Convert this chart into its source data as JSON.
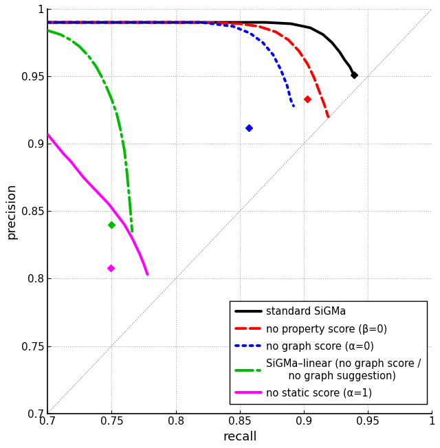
{
  "xlabel": "recall",
  "ylabel": "precision",
  "xlim": [
    0.7,
    1.0
  ],
  "ylim": [
    0.7,
    1.0
  ],
  "xticks": [
    0.7,
    0.75,
    0.8,
    0.85,
    0.9,
    0.95,
    1.0
  ],
  "yticks": [
    0.7,
    0.75,
    0.8,
    0.85,
    0.9,
    0.95,
    1.0
  ],
  "xticklabels": [
    "0.7",
    "0.75",
    "0.8",
    "0.85",
    "0.9",
    "0.95",
    "1"
  ],
  "yticklabels": [
    "0.7",
    "0.75",
    "0.8",
    "0.85",
    "0.9",
    "0.95",
    "1"
  ],
  "diagonal": {
    "x": [
      0.7,
      1.0
    ],
    "y": [
      0.7,
      1.0
    ],
    "color": "#888888",
    "lw": 0.9
  },
  "curves": [
    {
      "name": "standard SiGMa",
      "color": "#000000",
      "linestyle": "solid",
      "lw": 2.8,
      "recall": [
        0.7,
        0.73,
        0.76,
        0.79,
        0.82,
        0.85,
        0.87,
        0.89,
        0.905,
        0.915,
        0.922,
        0.928,
        0.932,
        0.936,
        0.939
      ],
      "precision": [
        0.99,
        0.99,
        0.99,
        0.99,
        0.99,
        0.99,
        0.99,
        0.989,
        0.986,
        0.981,
        0.975,
        0.968,
        0.962,
        0.957,
        0.951
      ],
      "marker_x": [
        0.939
      ],
      "marker_y": [
        0.951
      ],
      "marker": "D",
      "markersize": 5.5
    },
    {
      "name": "no property score (β=0)",
      "color": "#ff0000",
      "linestyle": "dashed",
      "lw": 2.8,
      "recall": [
        0.7,
        0.73,
        0.76,
        0.79,
        0.82,
        0.85,
        0.865,
        0.878,
        0.888,
        0.896,
        0.903,
        0.908,
        0.912,
        0.916,
        0.919
      ],
      "precision": [
        0.99,
        0.99,
        0.99,
        0.99,
        0.99,
        0.989,
        0.987,
        0.983,
        0.977,
        0.969,
        0.959,
        0.949,
        0.939,
        0.929,
        0.92
      ],
      "marker_x": [
        0.903
      ],
      "marker_y": [
        0.933
      ],
      "marker": "D",
      "markersize": 5.5
    },
    {
      "name": "no graph score (α=0)",
      "color": "#0000ff",
      "linestyle": "dotted",
      "lw": 2.8,
      "recall": [
        0.7,
        0.73,
        0.76,
        0.79,
        0.82,
        0.845,
        0.858,
        0.868,
        0.876,
        0.882,
        0.887,
        0.89,
        0.892
      ],
      "precision": [
        0.99,
        0.99,
        0.99,
        0.99,
        0.99,
        0.987,
        0.982,
        0.975,
        0.966,
        0.955,
        0.943,
        0.932,
        0.928
      ],
      "marker_x": [
        0.857
      ],
      "marker_y": [
        0.912
      ],
      "marker": "D",
      "markersize": 5.5
    },
    {
      "name": "SiGMa–linear (no graph score /\n     no graph suggestion)",
      "color": "#00bb00",
      "linestyle": "dashdot",
      "lw": 2.8,
      "recall": [
        0.7,
        0.71,
        0.718,
        0.725,
        0.732,
        0.738,
        0.742,
        0.746,
        0.75,
        0.754,
        0.757,
        0.76,
        0.762,
        0.764,
        0.766
      ],
      "precision": [
        0.984,
        0.981,
        0.977,
        0.972,
        0.965,
        0.957,
        0.95,
        0.942,
        0.933,
        0.922,
        0.91,
        0.895,
        0.878,
        0.858,
        0.835
      ],
      "marker_x": [
        0.75
      ],
      "marker_y": [
        0.84
      ],
      "marker": "D",
      "markersize": 5.5
    },
    {
      "name": "no static score (α=1)",
      "color": "#ff00ff",
      "linestyle": "solid",
      "lw": 2.8,
      "recall": [
        0.7,
        0.706,
        0.712,
        0.718,
        0.723,
        0.728,
        0.733,
        0.738,
        0.743,
        0.748,
        0.752,
        0.756,
        0.76,
        0.763,
        0.766,
        0.769,
        0.772,
        0.775,
        0.778
      ],
      "precision": [
        0.907,
        0.9,
        0.893,
        0.887,
        0.881,
        0.875,
        0.87,
        0.865,
        0.86,
        0.855,
        0.85,
        0.845,
        0.84,
        0.835,
        0.83,
        0.824,
        0.818,
        0.811,
        0.803
      ],
      "marker_x": [
        0.749
      ],
      "marker_y": [
        0.808
      ],
      "marker": "D",
      "markersize": 5.5
    }
  ],
  "legend_fontsize": 10.5,
  "tick_fontsize": 11,
  "label_fontsize": 13,
  "figsize": [
    6.4,
    6.52
  ],
  "dpi": 100
}
